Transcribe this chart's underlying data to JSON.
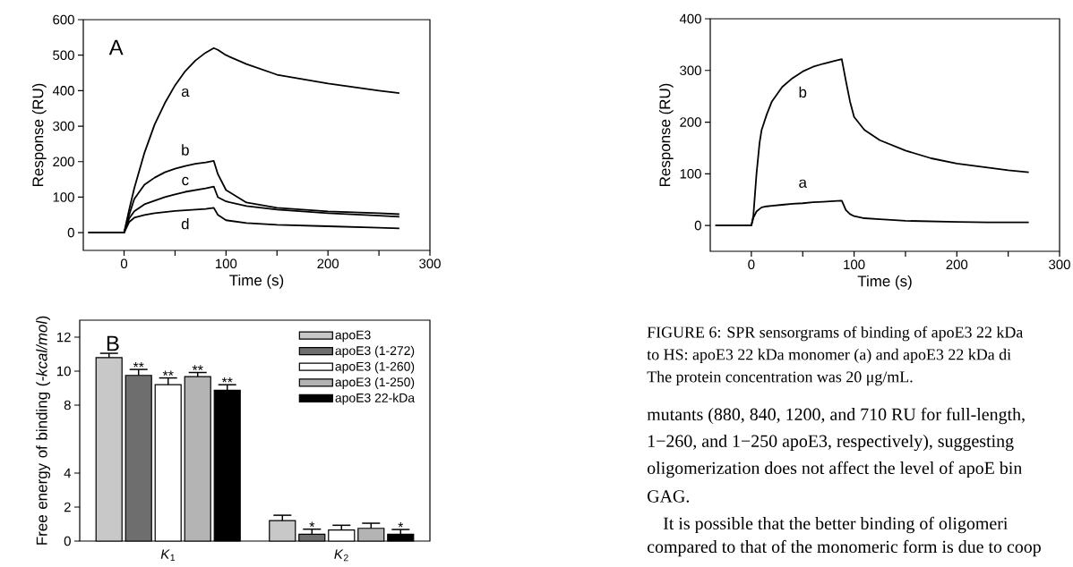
{
  "chart_data": [
    {
      "type": "line",
      "xlabel": "Time (s)",
      "ylabel": "Response (RU)",
      "x": [
        -35,
        -10,
        0,
        5,
        10,
        20,
        30,
        40,
        50,
        60,
        70,
        80,
        88,
        92,
        100,
        120,
        150,
        200,
        250,
        270
      ],
      "series": [
        {
          "name": "a",
          "color": "#000000",
          "values": [
            0,
            0,
            0,
            65,
            125,
            225,
            305,
            365,
            415,
            455,
            485,
            507,
            520,
            515,
            500,
            475,
            445,
            420,
            400,
            393
          ]
        },
        {
          "name": "b",
          "color": "#000000",
          "values": [
            0,
            0,
            0,
            50,
            95,
            135,
            155,
            170,
            180,
            188,
            194,
            198,
            202,
            165,
            120,
            85,
            70,
            60,
            55,
            52
          ]
        },
        {
          "name": "c",
          "color": "#000000",
          "values": [
            0,
            0,
            0,
            40,
            60,
            80,
            90,
            100,
            108,
            115,
            120,
            125,
            130,
            100,
            88,
            75,
            65,
            55,
            48,
            45
          ]
        },
        {
          "name": "d",
          "color": "#000000",
          "values": [
            0,
            0,
            0,
            30,
            42,
            50,
            55,
            58,
            61,
            63,
            65,
            67,
            70,
            50,
            35,
            27,
            22,
            18,
            14,
            12
          ]
        }
      ],
      "xlim": [
        -40,
        300
      ],
      "ylim": [
        -50,
        600
      ],
      "xticks": [
        0,
        {
          "value": 50,
          "label": null
        },
        100,
        {
          "value": 150,
          "label": null
        },
        200,
        {
          "value": 250,
          "label": null
        },
        300
      ],
      "yticks": [
        0,
        100,
        200,
        300,
        400,
        500,
        600
      ],
      "annotations": [
        "A"
      ]
    },
    {
      "type": "line",
      "xlabel": "Time (s)",
      "ylabel": "Response (RU)",
      "x": [
        -35,
        -10,
        0,
        2,
        5,
        8,
        10,
        15,
        20,
        30,
        40,
        50,
        60,
        70,
        80,
        88,
        92,
        96,
        100,
        110,
        125,
        150,
        175,
        200,
        230,
        250,
        270
      ],
      "series": [
        {
          "name": "b",
          "color": "#000000",
          "values": [
            0,
            0,
            0,
            20,
            100,
            160,
            185,
            215,
            240,
            268,
            285,
            298,
            307,
            313,
            318,
            322,
            280,
            240,
            210,
            185,
            165,
            145,
            130,
            120,
            112,
            107,
            103
          ]
        },
        {
          "name": "a",
          "color": "#000000",
          "values": [
            0,
            0,
            0,
            15,
            27,
            32,
            35,
            37,
            38,
            40,
            42,
            43,
            45,
            46,
            47,
            48,
            30,
            22,
            18,
            14,
            12,
            9,
            8,
            7,
            6,
            6,
            6
          ]
        }
      ],
      "xlim": [
        -40,
        300
      ],
      "ylim": [
        -50,
        400
      ],
      "xticks": [
        0,
        {
          "value": 50,
          "label": null
        },
        100,
        {
          "value": 150,
          "label": null
        },
        200,
        {
          "value": 250,
          "label": null
        },
        300
      ],
      "yticks": [
        0,
        100,
        200,
        300,
        400
      ],
      "annotations": [
        "FIGURE 6: SPR sensorgrams of binding of apoE3 22 kDa",
        "to HS: apoE3 22 kDa monomer (a) and apoE3 22 kDa di",
        "The protein concentration was 20 μg/mL.",
        "mutants (880, 840, 1200, and 710 RU for full-length,",
        "1−260, and 1−250 apoE3, respectively), suggesting",
        "oligomerization does not affect the level of apoE bin",
        "GAG.",
        "It is possible that the better binding of oligomeri",
        "compared to that of the monomeric form is due to coop"
      ]
    },
    {
      "type": "bar",
      "ylabel": "Free energy of binding (*-kcal/mol*)",
      "categories": [
        "*K*$_{1}$",
        "*K*$_{2}$"
      ],
      "series": [
        {
          "name": "apoE3",
          "color": "#c8c8c8",
          "values": [
            10.8,
            1.2
          ],
          "errors": [
            [
              10.8,
              11.05
            ],
            [
              1.2,
              1.52
            ]
          ]
        },
        {
          "name": "apoE3 (1-272)",
          "color": "#6e6e6e",
          "values": [
            9.75,
            0.4
          ],
          "errors": [
            [
              9.75,
              10.1
            ],
            [
              0.4,
              0.7
            ]
          ],
          "value_labels": [
            "**",
            "*"
          ]
        },
        {
          "name": "apoE3 (1-260)",
          "color": "#ffffff",
          "values": [
            9.2,
            0.65
          ],
          "errors": [
            [
              9.2,
              9.6
            ],
            [
              0.65,
              0.93
            ]
          ],
          "value_labels": [
            "**",
            null
          ]
        },
        {
          "name": "apoE3 (1-250)",
          "color": "#b4b4b4",
          "values": [
            9.68,
            0.75
          ],
          "errors": [
            [
              9.68,
              9.92
            ],
            [
              0.75,
              1.05
            ]
          ],
          "value_labels": [
            "**",
            null
          ]
        },
        {
          "name": "apoE3 22-kDa",
          "color": "#000000",
          "values": [
            8.88,
            0.4
          ],
          "errors": [
            [
              8.88,
              9.2
            ],
            [
              0.4,
              0.68
            ]
          ],
          "value_labels": [
            "**",
            "*"
          ]
        }
      ],
      "ylim": [
        0,
        13
      ],
      "yticks": [
        0,
        2,
        4,
        8,
        10,
        12
      ],
      "legend": "top right",
      "annotations": [
        "B"
      ]
    }
  ]
}
